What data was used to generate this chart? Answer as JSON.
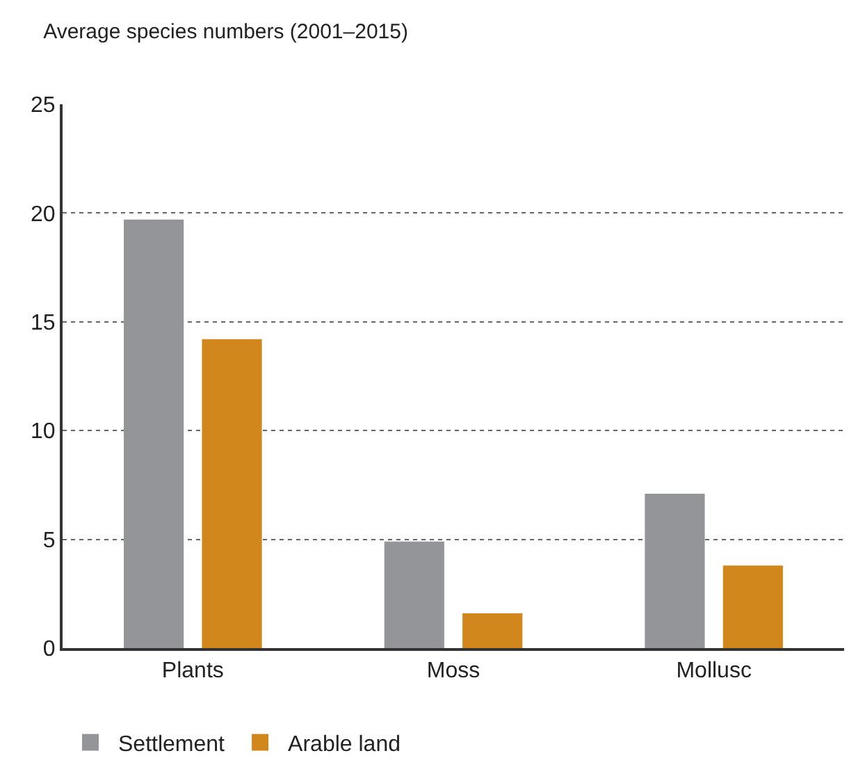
{
  "chart_data": {
    "type": "bar",
    "title": "Average species numbers (2001–2015)",
    "categories": [
      "Plants",
      "Moss",
      "Mollusc"
    ],
    "series": [
      {
        "name": "Settlement",
        "color": "#939598",
        "values": [
          19.7,
          4.9,
          7.1
        ]
      },
      {
        "name": "Arable land",
        "color": "#d2871c",
        "values": [
          14.2,
          1.6,
          3.8
        ]
      }
    ],
    "ylim": [
      0,
      25
    ],
    "yticks": [
      0,
      5,
      10,
      15,
      20,
      25
    ],
    "grid": "y",
    "legend": "bottom left"
  }
}
